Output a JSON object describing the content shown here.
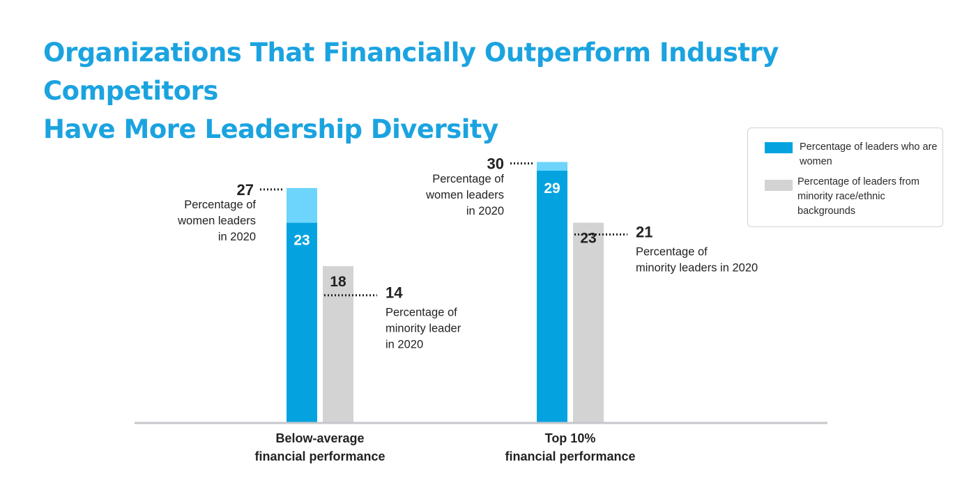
{
  "title": {
    "line1": "Organizations That Financially Outperform Industry Competitors",
    "line2": "Have More Leadership Diversity"
  },
  "colors": {
    "title": "#1ba3e0",
    "women_bar": "#04a3e0",
    "women_2020": "#6dd4fb",
    "minority_bar": "#d3d3d3",
    "axis": "#c5c7cb",
    "text": "#222222"
  },
  "legend": {
    "items": [
      {
        "label": "Percentage of leaders who are women",
        "color": "#04a3e0"
      },
      {
        "label": "Percentage of leaders from minority race/ethnic backgrounds",
        "color": "#d3d3d3"
      }
    ]
  },
  "chart_data": {
    "type": "bar",
    "title": "Organizations That Financially Outperform Industry Competitors Have More Leadership Diversity",
    "xlabel": "",
    "ylabel": "",
    "ylim": [
      0,
      30
    ],
    "grid": false,
    "legend_position": "top-right",
    "categories": [
      {
        "line1": "Below-average",
        "line2": "financial performance"
      },
      {
        "line1": "Top 10%",
        "line2": "financial performance"
      }
    ],
    "series": [
      {
        "name": "Percentage of leaders who are women",
        "values": [
          23,
          29
        ]
      },
      {
        "name": "Percentage of leaders from minority race/ethnic backgrounds",
        "values": [
          18,
          23
        ]
      }
    ],
    "comparison_2020": [
      {
        "women": {
          "value": 27,
          "lines": [
            "Percentage of",
            "women leaders",
            "in 2020"
          ]
        },
        "minority": {
          "value": 14,
          "lines": [
            "Percentage of",
            "minority leader",
            "in 2020"
          ]
        }
      },
      {
        "women": {
          "value": 30,
          "lines": [
            "Percentage of",
            "women leaders",
            "in 2020"
          ]
        },
        "minority": {
          "value": 21,
          "lines": [
            "Percentage of",
            "minority leaders in 2020"
          ]
        }
      }
    ]
  }
}
